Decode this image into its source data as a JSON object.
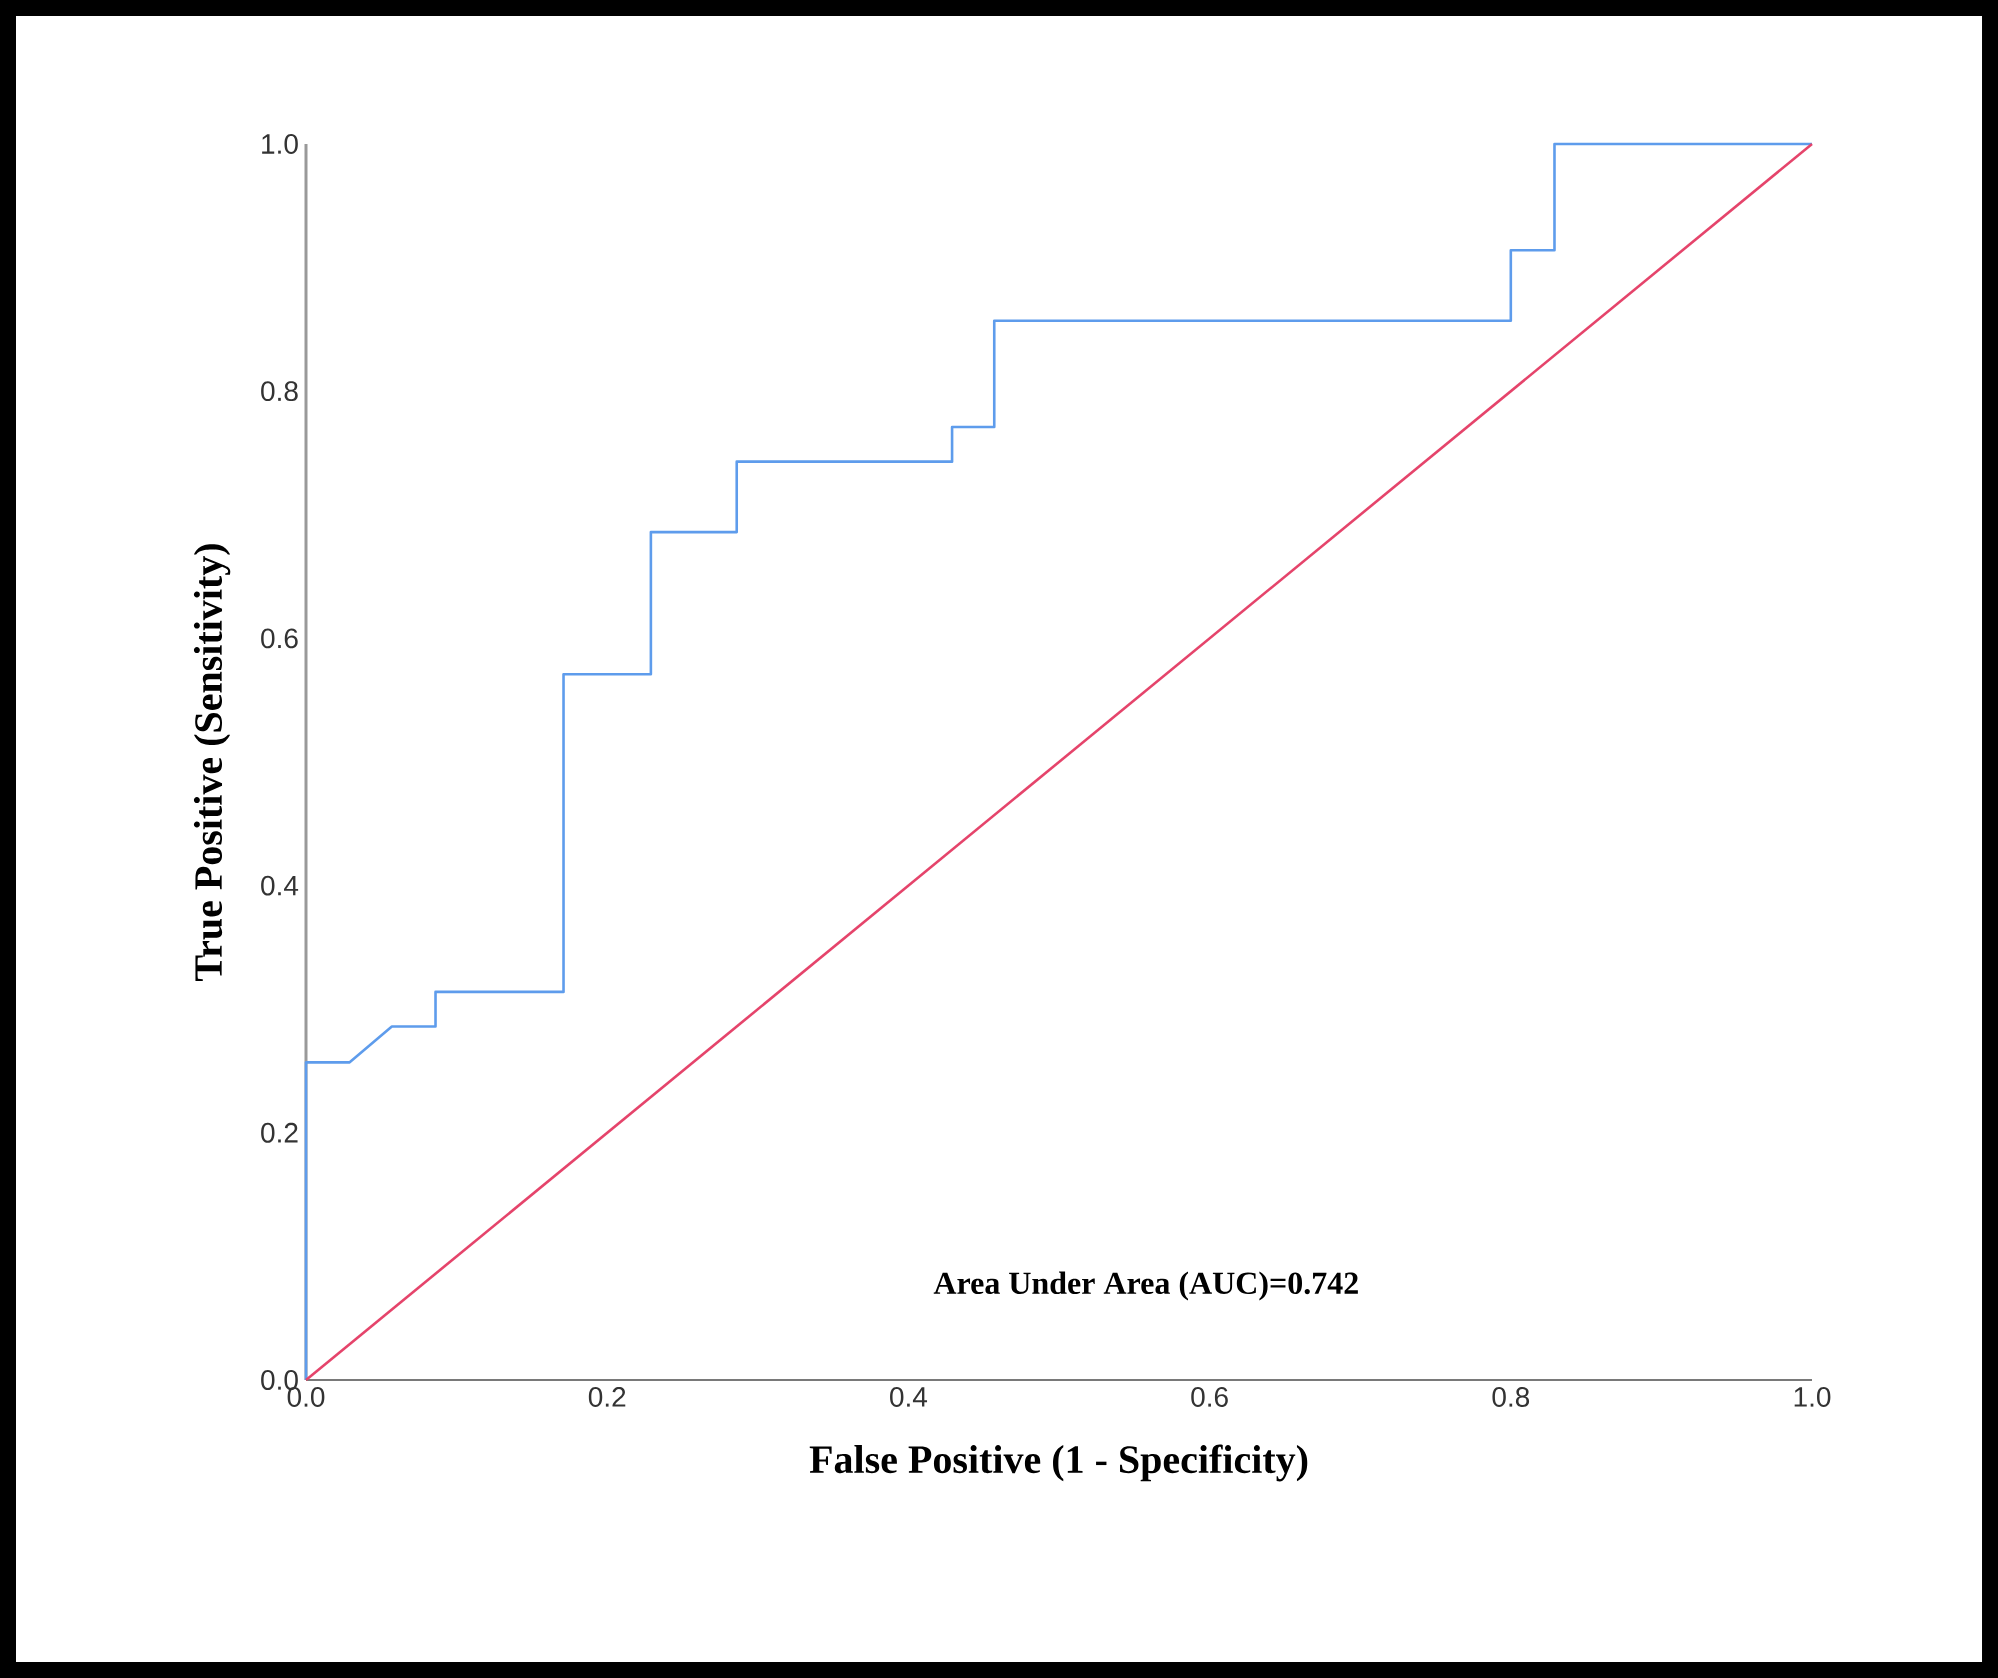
{
  "chart_data": {
    "type": "line",
    "xlabel": "False Positive (1 - Specificity)",
    "ylabel": "True Positive (Sensitivity)",
    "annotations": [
      "Area Under Area (AUC)=0.742"
    ],
    "series": [
      {
        "color": "#5e9cec",
        "x": [
          0,
          0,
          0.029,
          0.057,
          0.086,
          0.086,
          0.171,
          0.171,
          0.229,
          0.229,
          0.286,
          0.286,
          0.429,
          0.429,
          0.457,
          0.457,
          0.8,
          0.8,
          0.829,
          0.829,
          1.0
        ],
        "values": [
          0,
          0.257,
          0.257,
          0.286,
          0.286,
          0.314,
          0.314,
          0.571,
          0.571,
          0.686,
          0.686,
          0.743,
          0.743,
          0.771,
          0.771,
          0.857,
          0.857,
          0.914,
          0.914,
          1.0,
          1.0
        ]
      },
      {
        "color": "#e5446b",
        "x": [
          0,
          1
        ],
        "values": [
          0,
          1
        ]
      }
    ],
    "xlim": [
      0,
      1
    ],
    "ylim": [
      0,
      1
    ],
    "xticks": [
      {
        "value": 0,
        "label": "0.0"
      },
      {
        "value": 0.2,
        "label": "0.2"
      },
      {
        "value": 0.4,
        "label": "0.4"
      },
      {
        "value": 0.6,
        "label": "0.6"
      },
      {
        "value": 0.8,
        "label": "0.8"
      },
      {
        "value": 1,
        "label": "1.0"
      }
    ],
    "yticks": [
      {
        "value": 0,
        "label": "0.0"
      },
      {
        "value": 0.2,
        "label": "0.2"
      },
      {
        "value": 0.4,
        "label": "0.4"
      },
      {
        "value": 0.6,
        "label": "0.6"
      },
      {
        "value": 0.8,
        "label": "0.8"
      },
      {
        "value": 1,
        "label": "1.0"
      }
    ]
  }
}
